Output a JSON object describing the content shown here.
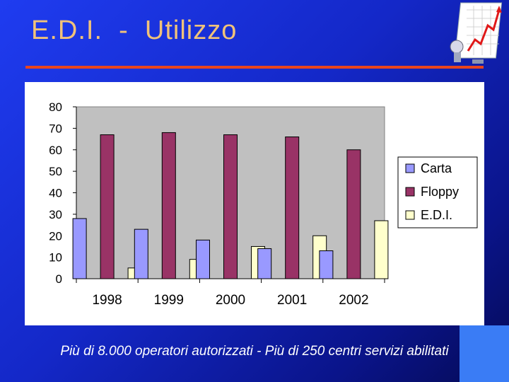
{
  "slide": {
    "title": "E.D.I.  -  Utilizzo",
    "footer": "Più di 8.000 operatori autorizzati - Più di 250 centri servizi abilitati"
  },
  "colors": {
    "title": "#f0c27a",
    "rule": "#e8451e",
    "carta": "#9999ff",
    "floppy": "#993366",
    "edi": "#ffffcc",
    "plot_bg": "#c0c0c0"
  },
  "chart_data": {
    "type": "bar",
    "categories": [
      "1998",
      "1999",
      "2000",
      "2001",
      "2002"
    ],
    "series": [
      {
        "name": "Carta",
        "values": [
          28,
          23,
          18,
          14,
          13
        ]
      },
      {
        "name": "Floppy",
        "values": [
          67,
          68,
          67,
          66,
          60
        ]
      },
      {
        "name": "E.D.I.",
        "values": [
          5,
          9,
          15,
          20,
          27
        ]
      }
    ],
    "ylim": [
      0,
      80
    ],
    "yticks": [
      0,
      10,
      20,
      30,
      40,
      50,
      60,
      70,
      80
    ],
    "grid": false,
    "legend": "right"
  }
}
